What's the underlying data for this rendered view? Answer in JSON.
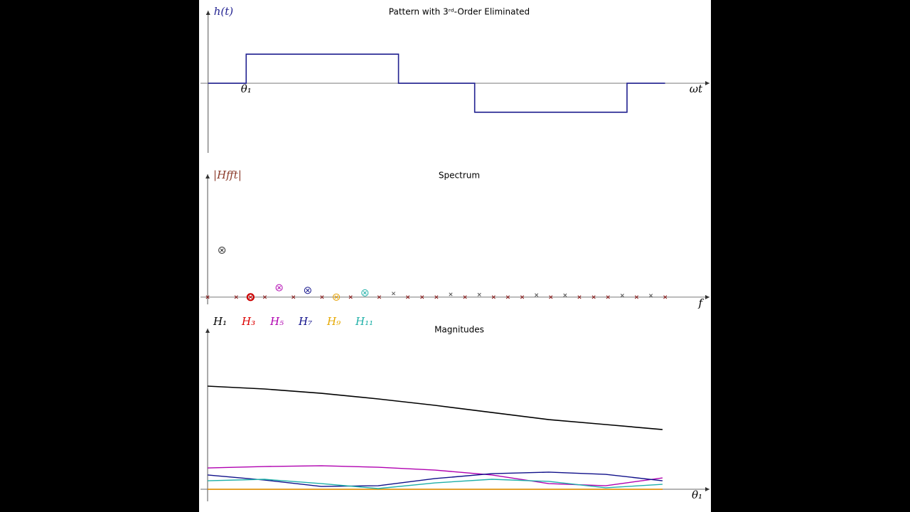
{
  "chart_data": [
    {
      "type": "step",
      "title": "Pattern with 3ʳᵈ-Order Eliminated",
      "y_label": "h(t)",
      "x_label": "ωt",
      "color": "#1f1f8f",
      "x": [
        0,
        30,
        30,
        150,
        150,
        210,
        210,
        330,
        330,
        360
      ],
      "values": [
        0,
        0,
        1,
        1,
        0,
        0,
        -1,
        -1,
        0,
        0
      ],
      "annotations": [
        {
          "text": "θ₁",
          "x": 30
        }
      ],
      "xlim": [
        -6,
        395
      ],
      "ylim": [
        -2.4,
        2.5
      ]
    },
    {
      "type": "scatter",
      "title": "Spectrum",
      "y_label": "|Hfft|",
      "x_label": "f",
      "x": [
        0,
        1,
        2,
        3,
        4,
        5,
        6,
        7,
        8,
        9,
        10,
        11,
        12,
        13,
        14,
        15,
        16,
        17,
        18,
        19,
        20,
        21,
        22,
        23,
        24,
        25,
        26,
        27,
        28,
        29,
        30,
        31,
        32
      ],
      "values": [
        0,
        1.103,
        0,
        0,
        0,
        0.221,
        0,
        0.158,
        0,
        0,
        0,
        0.1,
        0,
        0.085,
        0,
        0,
        0,
        0.065,
        0,
        0.058,
        0,
        0,
        0,
        0.048,
        0,
        0.044,
        0,
        0,
        0,
        0.038,
        0,
        0.036,
        0
      ],
      "colors": [
        "#8b1a1a",
        "#222222",
        "#8b1a1a",
        "#cc0000",
        "#8b1a1a",
        "#b000b0",
        "#8b1a1a",
        "#10108a",
        "#8b1a1a",
        "#e6a000",
        "#8b1a1a",
        "#20b0a8",
        "#8b1a1a",
        "#555555",
        "#8b1a1a",
        "#8b1a1a",
        "#8b1a1a",
        "#555555",
        "#8b1a1a",
        "#555555",
        "#8b1a1a",
        "#8b1a1a",
        "#8b1a1a",
        "#555555",
        "#8b1a1a",
        "#555555",
        "#8b1a1a",
        "#8b1a1a",
        "#8b1a1a",
        "#555555",
        "#8b1a1a",
        "#555555",
        "#8b1a1a"
      ],
      "circle_colors": [
        null,
        "#222222",
        null,
        "#cc0000",
        null,
        "#b000b0",
        null,
        "#10108a",
        null,
        "#e6a000",
        null,
        "#20b0a8",
        null,
        null,
        null,
        null,
        null,
        null,
        null,
        null,
        null,
        null,
        null,
        null,
        null,
        null,
        null,
        null,
        null,
        null,
        null,
        null,
        null
      ],
      "xlim": [
        -0.5,
        35.1
      ],
      "ylim": [
        -0.17,
        2.89
      ]
    },
    {
      "type": "line",
      "title": "Magnitudes",
      "x_label": "θ₁",
      "x": [
        0,
        7.5,
        15,
        22.5,
        30,
        37.5,
        45,
        52.5,
        60
      ],
      "series": [
        {
          "name": "H₁",
          "color": "#000000",
          "values": [
            1.273,
            1.238,
            1.185,
            1.115,
            1.036,
            0.948,
            0.86,
            0.799,
            0.737
          ]
        },
        {
          "name": "H₃",
          "color": "#dd0000",
          "values": [
            0,
            0,
            0,
            0,
            0,
            0,
            0,
            0,
            0
          ]
        },
        {
          "name": "H₅",
          "color": "#b000b0",
          "values": [
            0.263,
            0.281,
            0.29,
            0.272,
            0.237,
            0.176,
            0.07,
            0.044,
            0.14
          ]
        },
        {
          "name": "H₇",
          "color": "#10108a",
          "values": [
            0.176,
            0.114,
            0.035,
            0.044,
            0.132,
            0.193,
            0.211,
            0.184,
            0.105
          ]
        },
        {
          "name": "H₉",
          "color": "#e6a800",
          "values": [
            0,
            0,
            0,
            0,
            0,
            0,
            0,
            0,
            0
          ]
        },
        {
          "name": "H₁₁",
          "color": "#20b0a8",
          "values": [
            0.105,
            0.123,
            0.07,
            0.009,
            0.079,
            0.123,
            0.097,
            0.018,
            0.061
          ]
        }
      ],
      "xlim": [
        -0.94,
        66.2
      ],
      "ylim": [
        -0.149,
        1.984
      ]
    }
  ]
}
